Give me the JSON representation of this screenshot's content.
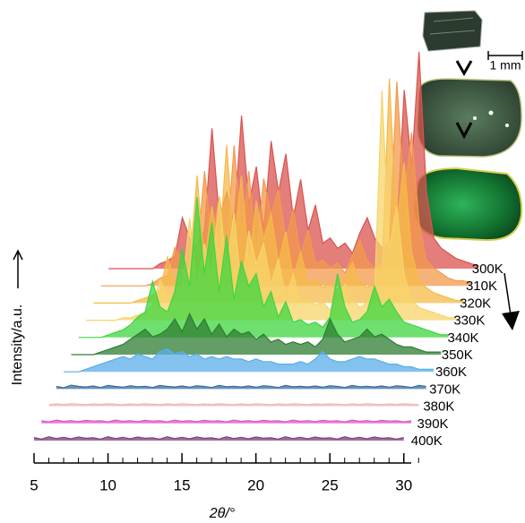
{
  "chart_data": {
    "type": "waterfall",
    "x_label": "2θ/°",
    "y_label": "Intensity/a.u.",
    "scale_label": "1 mm",
    "xlim": [
      5,
      30.5
    ],
    "xticks": [
      5,
      10,
      15,
      20,
      25,
      30
    ],
    "xticks_minor": [
      5,
      6,
      7,
      8,
      9,
      10,
      11,
      12,
      13,
      14,
      15,
      16,
      17,
      18,
      19,
      20,
      21,
      22,
      23,
      24,
      25,
      26,
      27,
      28,
      29,
      30,
      31
    ],
    "x": [
      5,
      5.5,
      6,
      6.5,
      7,
      7.5,
      8,
      8.5,
      9,
      9.5,
      10,
      10.5,
      11,
      11.5,
      12,
      12.5,
      13,
      13.5,
      14,
      14.5,
      15,
      15.5,
      16,
      16.5,
      17,
      17.5,
      18,
      18.5,
      19,
      19.5,
      20,
      20.5,
      21,
      21.5,
      22,
      22.5,
      23,
      23.5,
      24,
      24.5,
      25,
      25.5,
      26,
      26.5,
      27,
      27.5,
      28,
      28.5,
      29,
      29.5,
      30
    ],
    "series": [
      {
        "name": "300K",
        "color": "#d9534f",
        "values": [
          0,
          0,
          0,
          0,
          0,
          0,
          0,
          2,
          3,
          5,
          20,
          12,
          8,
          15,
          55,
          20,
          30,
          18,
          60,
          25,
          40,
          15,
          50,
          30,
          45,
          20,
          35,
          15,
          25,
          10,
          12,
          8,
          10,
          6,
          14,
          20,
          12,
          8,
          10,
          15,
          70,
          40,
          85,
          30,
          12,
          8,
          6,
          4,
          3,
          2,
          1
        ]
      },
      {
        "name": "310K",
        "color": "#f39a4c",
        "values": [
          0,
          0,
          0,
          0,
          0,
          0,
          0,
          1,
          3,
          4,
          15,
          10,
          6,
          12,
          45,
          18,
          35,
          15,
          55,
          20,
          45,
          12,
          42,
          28,
          38,
          18,
          30,
          12,
          22,
          9,
          10,
          7,
          9,
          5,
          12,
          18,
          10,
          7,
          9,
          14,
          80,
          35,
          60,
          25,
          10,
          7,
          5,
          3,
          2,
          2,
          1
        ]
      },
      {
        "name": "320K",
        "color": "#f6b94a",
        "values": [
          0,
          0,
          0,
          0,
          0,
          0,
          1,
          2,
          3,
          5,
          18,
          9,
          7,
          14,
          50,
          15,
          38,
          20,
          62,
          22,
          50,
          14,
          40,
          25,
          35,
          16,
          28,
          10,
          20,
          8,
          9,
          6,
          8,
          5,
          10,
          16,
          9,
          6,
          8,
          12,
          88,
          30,
          55,
          20,
          9,
          6,
          4,
          3,
          2,
          1,
          1
        ]
      },
      {
        "name": "330K",
        "color": "#f7d46a",
        "values": [
          0,
          0,
          0,
          0,
          0,
          1,
          1,
          2,
          3,
          6,
          16,
          10,
          8,
          12,
          40,
          14,
          30,
          18,
          48,
          20,
          42,
          12,
          35,
          22,
          30,
          14,
          24,
          9,
          18,
          7,
          8,
          6,
          7,
          4,
          9,
          14,
          8,
          5,
          7,
          10,
          90,
          28,
          45,
          18,
          8,
          5,
          4,
          3,
          2,
          1,
          1
        ]
      },
      {
        "name": "340K",
        "color": "#3fd63f",
        "values": [
          0,
          0,
          0,
          0,
          1,
          2,
          3,
          5,
          8,
          10,
          22,
          12,
          10,
          18,
          35,
          20,
          55,
          25,
          45,
          18,
          40,
          15,
          30,
          20,
          25,
          12,
          18,
          8,
          14,
          6,
          7,
          5,
          6,
          4,
          8,
          25,
          12,
          6,
          7,
          10,
          20,
          12,
          15,
          10,
          6,
          5,
          4,
          3,
          2,
          1,
          1
        ]
      },
      {
        "name": "350K",
        "color": "#2e7d32",
        "values": [
          0,
          0,
          0,
          0,
          1,
          2,
          3,
          4,
          6,
          8,
          10,
          7,
          8,
          10,
          14,
          9,
          16,
          10,
          14,
          8,
          12,
          7,
          10,
          8,
          9,
          6,
          8,
          5,
          6,
          4,
          5,
          4,
          5,
          3,
          6,
          14,
          8,
          5,
          6,
          7,
          10,
          7,
          8,
          6,
          4,
          3,
          3,
          2,
          1,
          1,
          1
        ]
      },
      {
        "name": "360K",
        "color": "#5aaee8",
        "values": [
          0,
          0,
          0,
          1,
          2,
          3,
          4,
          5,
          6,
          5,
          7,
          6,
          5,
          8,
          9,
          7,
          8,
          6,
          7,
          5,
          6,
          5,
          6,
          5,
          5,
          4,
          5,
          4,
          4,
          3,
          3,
          3,
          4,
          3,
          5,
          8,
          5,
          4,
          4,
          5,
          6,
          5,
          5,
          4,
          3,
          3,
          2,
          2,
          1,
          1,
          1
        ]
      },
      {
        "name": "370K",
        "color": "#3b6e9e",
        "values": [
          1,
          0.5,
          1.5,
          1,
          0.8,
          1.2,
          0.6,
          1.4,
          1,
          0.7,
          1.3,
          0.9,
          1.1,
          0.6,
          1.4,
          1,
          0.8,
          1.2,
          0.7,
          1.3,
          1,
          0.6,
          1.4,
          0.9,
          1.1,
          0.8,
          1.2,
          0.7,
          1.3,
          1,
          0.6,
          1.4,
          0.9,
          1.1,
          0.8,
          1.2,
          0.7,
          1.3,
          1,
          0.6,
          1.4,
          0.9,
          1.1,
          0.8,
          1.2,
          0.7,
          1.3,
          1,
          0.6,
          1.4,
          1
        ]
      },
      {
        "name": "380K",
        "color": "#f4b4b4",
        "values": [
          0.6,
          0.9,
          0.7,
          1,
          0.8,
          0.6,
          0.9,
          0.7,
          1,
          0.8,
          0.6,
          0.9,
          0.7,
          1,
          0.8,
          0.6,
          0.9,
          0.7,
          1,
          0.8,
          0.6,
          0.9,
          0.7,
          1,
          0.8,
          0.6,
          0.9,
          0.7,
          1,
          0.8,
          0.6,
          0.9,
          0.7,
          1,
          0.8,
          0.6,
          0.9,
          0.7,
          1,
          0.8,
          0.6,
          0.9,
          0.7,
          1,
          0.8,
          0.6,
          0.9,
          0.7,
          1,
          0.8,
          0.6
        ]
      },
      {
        "name": "390K",
        "color": "#d957c9",
        "values": [
          1,
          0.6,
          1.3,
          0.8,
          1.1,
          0.7,
          1.2,
          0.9,
          1,
          0.6,
          1.3,
          0.8,
          1.1,
          0.7,
          1.2,
          0.9,
          1,
          0.6,
          1.3,
          0.8,
          1.1,
          0.7,
          1.2,
          0.9,
          1,
          0.6,
          1.3,
          0.8,
          1.1,
          0.7,
          1.2,
          0.9,
          1,
          0.6,
          1.3,
          0.8,
          1.1,
          0.7,
          1.2,
          0.9,
          1,
          0.6,
          1.3,
          0.8,
          1.1,
          0.7,
          1.2,
          0.9,
          1,
          0.6,
          1
        ]
      },
      {
        "name": "400K",
        "color": "#7b3f7b",
        "values": [
          1.2,
          0.6,
          1.5,
          0.8,
          1.3,
          0.7,
          1.4,
          0.9,
          1.1,
          0.6,
          1.5,
          0.8,
          1.3,
          0.7,
          1.4,
          0.9,
          1.1,
          0.6,
          1.5,
          0.8,
          1.3,
          0.7,
          1.4,
          0.9,
          1.1,
          0.6,
          1.5,
          0.8,
          1.3,
          0.7,
          1.4,
          0.9,
          1.1,
          0.6,
          1.5,
          0.8,
          1.3,
          0.7,
          1.4,
          0.9,
          1.1,
          0.6,
          1.5,
          0.8,
          1.3,
          0.7,
          1.4,
          0.9,
          1.1,
          0.6,
          1.2
        ]
      }
    ]
  }
}
